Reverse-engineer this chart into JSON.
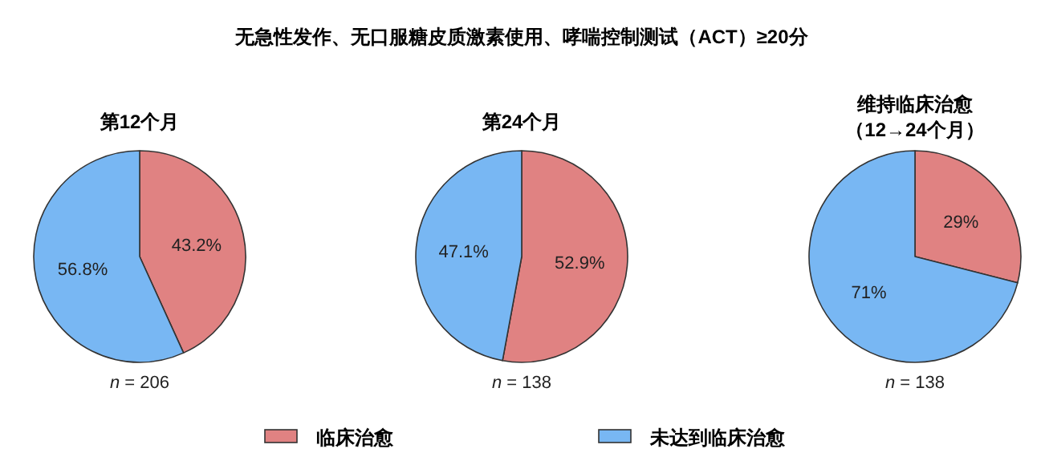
{
  "chart_data": [
    {
      "type": "pie",
      "title": "第12个月",
      "categories": [
        "临床治愈",
        "未达到临床治愈"
      ],
      "values": [
        43.2,
        56.8
      ],
      "colors": [
        "#e08282",
        "#78b7f3"
      ],
      "value_labels": [
        "43.2%",
        "56.8%"
      ],
      "legend": "bottom",
      "annotations": [
        "无急性发作、无口服糖皮质激素使用、哮喘控制测试（ACT）≥20分",
        "n = 206"
      ]
    },
    {
      "type": "pie",
      "title": "第24个月",
      "values": [
        52.9,
        47.1
      ],
      "colors": [
        "#e08282",
        "#78b7f3"
      ],
      "value_labels": [
        "52.9%",
        "47.1%"
      ],
      "annotations": [
        "n = 138"
      ]
    },
    {
      "type": "pie",
      "title": "维持临床治愈（12→24个月）",
      "values": [
        29,
        71
      ],
      "colors": [
        "#e08282",
        "#78b7f3"
      ],
      "value_labels": [
        "29%",
        "71%"
      ],
      "annotations": [
        "n = 138"
      ]
    }
  ]
}
